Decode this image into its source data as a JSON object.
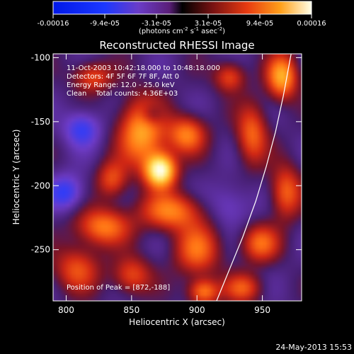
{
  "chart_data": {
    "type": "heatmap",
    "title": "Reconstructed RHESSI Image",
    "xlabel": "Heliocentric X (arcsec)",
    "ylabel": "Heliocentric Y (arcsec)",
    "xlim": [
      790,
      980
    ],
    "ylim": [
      -290,
      -97
    ],
    "x_ticks": [
      800,
      850,
      900,
      950
    ],
    "y_ticks": [
      -100,
      -150,
      -200,
      -250
    ],
    "colorbar": {
      "tick_labels": [
        "-0.00016",
        "-9.4e-05",
        "-3.1e-05",
        "3.1e-05",
        "9.4e-05",
        "0.00016"
      ],
      "range": [
        -0.00016,
        0.00016
      ],
      "unit_label": "(photons cm-2 s-1 asec-2)"
    },
    "annotations": [
      "11-Oct-2003 10:42:18.000 to 10:48:18.000",
      "Detectors: 4F 5F 6F 7F 8F, Att 0",
      "Energy Range: 12.0 - 25.0 keV",
      "Clean    Total counts: 4.36E+03"
    ],
    "peak_label": "Position of Peak = [872,-188]",
    "peak": {
      "x": 872,
      "y": -188
    },
    "limb_points": [
      [
        915,
        -290
      ],
      [
        925,
        -265
      ],
      [
        935,
        -240
      ],
      [
        945,
        -212
      ],
      [
        953,
        -185
      ],
      [
        960,
        -158
      ],
      [
        966,
        -130
      ],
      [
        972,
        -97
      ]
    ],
    "sources": [
      {
        "x": 872,
        "y": -188,
        "amp": 1.6,
        "sx": 8,
        "sy": 9
      },
      {
        "x": 858,
        "y": -158,
        "amp": 1.0,
        "sx": 12,
        "sy": 18
      },
      {
        "x": 892,
        "y": -160,
        "amp": 0.8,
        "sx": 10,
        "sy": 10
      },
      {
        "x": 828,
        "y": -232,
        "amp": 0.8,
        "sx": 14,
        "sy": 10
      },
      {
        "x": 880,
        "y": -220,
        "amp": 0.8,
        "sx": 16,
        "sy": 10
      },
      {
        "x": 808,
        "y": -265,
        "amp": 0.6,
        "sx": 12,
        "sy": 12
      },
      {
        "x": 850,
        "y": -270,
        "amp": 0.6,
        "sx": 10,
        "sy": 10
      },
      {
        "x": 900,
        "y": -250,
        "amp": 0.7,
        "sx": 12,
        "sy": 14
      },
      {
        "x": 905,
        "y": -283,
        "amp": 0.8,
        "sx": 8,
        "sy": 7
      },
      {
        "x": 942,
        "y": -160,
        "amp": 0.7,
        "sx": 8,
        "sy": 16
      },
      {
        "x": 965,
        "y": -115,
        "amp": 1.0,
        "sx": 8,
        "sy": 12
      },
      {
        "x": 968,
        "y": -205,
        "amp": 0.7,
        "sx": 8,
        "sy": 14
      },
      {
        "x": 948,
        "y": -245,
        "amp": 0.7,
        "sx": 10,
        "sy": 10
      },
      {
        "x": 925,
        "y": -115,
        "amp": 0.6,
        "sx": 8,
        "sy": 8
      },
      {
        "x": 820,
        "y": -115,
        "amp": 0.6,
        "sx": 10,
        "sy": 8
      },
      {
        "x": 835,
        "y": -195,
        "amp": 0.6,
        "sx": 8,
        "sy": 10
      },
      {
        "x": 935,
        "y": -280,
        "amp": 0.6,
        "sx": 10,
        "sy": 8
      },
      {
        "x": 812,
        "y": -155,
        "amp": -0.5,
        "sx": 10,
        "sy": 10
      },
      {
        "x": 800,
        "y": -205,
        "amp": -0.5,
        "sx": 10,
        "sy": 10
      },
      {
        "x": 865,
        "y": -145,
        "amp": -0.4,
        "sx": 6,
        "sy": 6
      },
      {
        "x": 925,
        "y": -215,
        "amp": -0.3,
        "sx": 12,
        "sy": 12
      }
    ]
  },
  "footer": {
    "date": "24-May-2013 15:53"
  }
}
